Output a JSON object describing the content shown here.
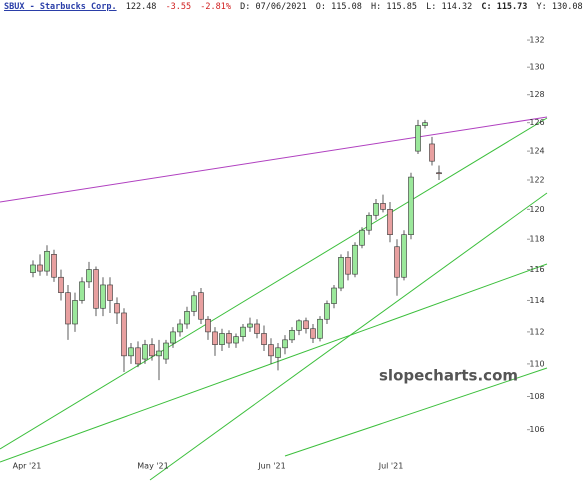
{
  "chart_data": {
    "type": "candlestick",
    "header": {
      "title": "SBUX - Starbucks Corp.",
      "last": "122.48",
      "change": "-3.55",
      "change_pct": "-2.81%",
      "date": "D: 07/06/2021",
      "open": "O: 115.08",
      "high": "H: 115.85",
      "low": "L: 114.32",
      "close": "C: 115.73",
      "year": "Y: 130.08"
    },
    "watermark": "slopecharts.com",
    "categories": [
      "Apr '21",
      null,
      null,
      null,
      null,
      null,
      null,
      null,
      null,
      null,
      null,
      null,
      null,
      null,
      null,
      null,
      null,
      null,
      "May '21",
      null,
      null,
      null,
      null,
      null,
      null,
      null,
      null,
      null,
      null,
      null,
      null,
      null,
      null,
      null,
      null,
      "Jun '21",
      null,
      null,
      null,
      null,
      null,
      null,
      null,
      null,
      null,
      null,
      null,
      null,
      null,
      null,
      null,
      null,
      "Jul '21",
      null,
      null,
      null,
      null,
      null,
      null
    ],
    "open": [
      115.8,
      116.3,
      115.9,
      117.0,
      115.5,
      114.5,
      112.5,
      114.0,
      115.2,
      116.0,
      113.5,
      115.0,
      113.8,
      113.2,
      110.5,
      111.0,
      110.3,
      111.2,
      110.5,
      110.3,
      111.3,
      112.0,
      112.5,
      113.3,
      114.5,
      112.8,
      112.0,
      111.2,
      111.9,
      111.3,
      111.7,
      112.3,
      112.5,
      111.9,
      111.2,
      110.4,
      111.0,
      111.5,
      112.1,
      112.7,
      112.2,
      111.6,
      112.8,
      113.8,
      114.8,
      116.8,
      115.7,
      117.6,
      118.6,
      119.6,
      120.4,
      120.0,
      117.5,
      115.5,
      118.3,
      124.0,
      125.8,
      124.5,
      122.5
    ],
    "high": [
      116.6,
      117.0,
      117.6,
      117.3,
      116.0,
      115.0,
      114.5,
      115.5,
      116.5,
      116.2,
      115.5,
      115.5,
      114.2,
      113.5,
      111.3,
      111.4,
      111.5,
      111.6,
      111.5,
      111.5,
      112.3,
      112.8,
      113.6,
      114.6,
      114.8,
      113.0,
      112.3,
      112.2,
      112.1,
      111.9,
      112.5,
      112.9,
      112.8,
      112.4,
      111.6,
      111.3,
      111.8,
      112.3,
      112.8,
      112.9,
      112.5,
      113.0,
      114.0,
      115.0,
      117.0,
      117.2,
      117.8,
      118.8,
      119.8,
      120.7,
      121.0,
      120.5,
      118.0,
      118.6,
      122.5,
      126.2,
      126.2,
      125.0,
      123.0
    ],
    "low": [
      115.5,
      115.6,
      115.6,
      115.2,
      114.0,
      111.5,
      112.0,
      113.8,
      114.8,
      113.0,
      113.0,
      113.2,
      112.5,
      109.5,
      110.0,
      109.8,
      110.0,
      110.2,
      109.0,
      110.0,
      111.0,
      111.7,
      112.2,
      113.0,
      112.5,
      111.5,
      110.5,
      110.8,
      111.0,
      111.0,
      111.4,
      112.0,
      111.6,
      110.8,
      110.0,
      109.6,
      110.6,
      111.3,
      111.8,
      111.9,
      111.3,
      111.4,
      112.5,
      113.5,
      114.6,
      115.3,
      115.5,
      117.4,
      118.3,
      119.3,
      119.8,
      117.8,
      114.3,
      115.3,
      118.0,
      123.8,
      125.6,
      123.0,
      122.0
    ],
    "close": [
      116.3,
      115.9,
      117.2,
      115.5,
      114.5,
      112.5,
      114.0,
      115.2,
      116.0,
      113.5,
      115.0,
      114.0,
      113.2,
      110.5,
      111.0,
      110.0,
      111.2,
      110.5,
      110.8,
      111.3,
      112.0,
      112.5,
      113.3,
      114.3,
      112.8,
      112.0,
      111.2,
      111.9,
      111.3,
      111.7,
      112.3,
      112.5,
      111.9,
      111.2,
      110.5,
      111.0,
      111.5,
      112.1,
      112.7,
      112.2,
      111.6,
      112.8,
      113.8,
      114.8,
      116.8,
      115.7,
      117.6,
      118.6,
      119.6,
      120.4,
      120.0,
      118.3,
      115.5,
      118.3,
      122.2,
      125.8,
      126.0,
      123.3,
      122.48
    ],
    "up_color": "#9be89b",
    "down_color": "#e8a0a0",
    "border_color": "#333333",
    "ylim": [
      104.5,
      133.5
    ],
    "log_y": true,
    "grid": false,
    "yticks": [
      106,
      108,
      110,
      112,
      114,
      116,
      118,
      120,
      122,
      124,
      126,
      128,
      130,
      132
    ]
  }
}
